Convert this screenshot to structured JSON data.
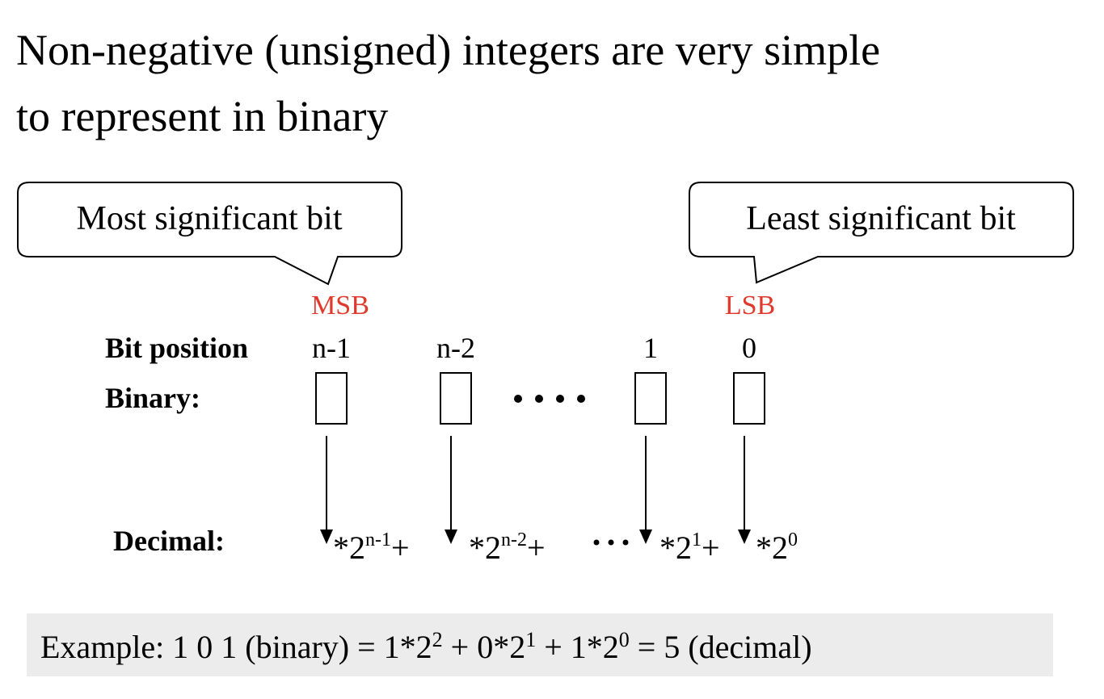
{
  "title": {
    "lines": [
      "Non-negative (unsigned) integers are very simple",
      "to represent in binary"
    ]
  },
  "callouts": {
    "left": "Most significant bit",
    "right": "Least significant bit"
  },
  "markers": {
    "left": "MSB",
    "right": "LSB"
  },
  "bit_position": {
    "label": "Bit position",
    "positions": [
      "n-1",
      "n-2",
      "1",
      "0"
    ]
  },
  "binary": {
    "label": "Binary:"
  },
  "decimal": {
    "label": "Decimal:",
    "terms": [
      {
        "base": "*2",
        "exponent": "n-1",
        "op": "+"
      },
      {
        "base": "*2",
        "exponent": "n-2",
        "op": "+"
      },
      {
        "base": "*2",
        "exponent": "1",
        "op": "+"
      },
      {
        "base": "*2",
        "exponent": "0"
      }
    ]
  },
  "example": {
    "parts": [
      {
        "text": "Example:  1 0 1 (binary) = 1*2",
        "exponent": "2"
      },
      {
        "text": " + 0*2",
        "exponent": "1"
      },
      {
        "text": " + 1*2",
        "exponent": "0"
      },
      {
        "text": " = 5 (decimal)"
      }
    ]
  }
}
